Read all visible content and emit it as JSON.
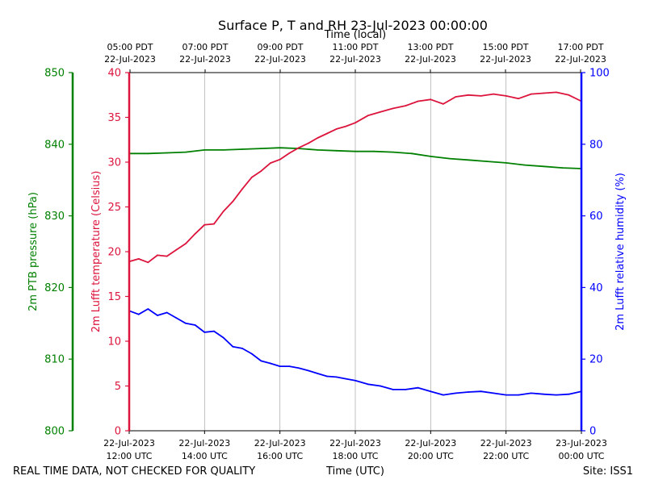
{
  "chart_data": {
    "type": "line",
    "title": "Surface P, T and RH 23-Jul-2023 00:00:00",
    "top_axis_label": "Time (local)",
    "top_ticks": [
      {
        "line1": "05:00 PDT",
        "line2": "22-Jul-2023"
      },
      {
        "line1": "07:00 PDT",
        "line2": "22-Jul-2023"
      },
      {
        "line1": "09:00 PDT",
        "line2": "22-Jul-2023"
      },
      {
        "line1": "11:00 PDT",
        "line2": "22-Jul-2023"
      },
      {
        "line1": "13:00 PDT",
        "line2": "22-Jul-2023"
      },
      {
        "line1": "15:00 PDT",
        "line2": "22-Jul-2023"
      },
      {
        "line1": "17:00 PDT",
        "line2": "22-Jul-2023"
      }
    ],
    "bottom_axis_label": "Time (UTC)",
    "bottom_ticks": [
      {
        "line1": "22-Jul-2023",
        "line2": "12:00 UTC"
      },
      {
        "line1": "22-Jul-2023",
        "line2": "14:00 UTC"
      },
      {
        "line1": "22-Jul-2023",
        "line2": "16:00 UTC"
      },
      {
        "line1": "22-Jul-2023",
        "line2": "18:00 UTC"
      },
      {
        "line1": "22-Jul-2023",
        "line2": "20:00 UTC"
      },
      {
        "line1": "22-Jul-2023",
        "line2": "22:00 UTC"
      },
      {
        "line1": "23-Jul-2023",
        "line2": "00:00 UTC"
      }
    ],
    "xlim": [
      "22-Jul-2023 12:00 UTC",
      "23-Jul-2023 00:00 UTC"
    ],
    "grid": "vertical",
    "axes": {
      "pressure": {
        "label": "2m PTB pressure (hPa)",
        "lim": [
          800,
          850
        ],
        "ticks": [
          "800",
          "810",
          "820",
          "830",
          "840",
          "850"
        ],
        "color": "#008000"
      },
      "temperature": {
        "label": "2m Lufft temperature (Celsius)",
        "lim": [
          0,
          40
        ],
        "ticks": [
          "0",
          "5",
          "10",
          "15",
          "20",
          "25",
          "30",
          "35",
          "40"
        ],
        "color": "#dc143c"
      },
      "humidity": {
        "label": "2m Lufft relative humidity (%)",
        "lim": [
          0,
          100
        ],
        "ticks": [
          "0",
          "20",
          "40",
          "60",
          "80",
          "100"
        ],
        "color": "#0000ff"
      }
    },
    "series": [
      {
        "key": "pressure",
        "color": "#008000",
        "x": [
          "12:00",
          "12:30",
          "13:00",
          "13:30",
          "14:00",
          "14:30",
          "15:00",
          "15:30",
          "16:00",
          "16:30",
          "17:00",
          "17:30",
          "18:00",
          "18:30",
          "19:00",
          "19:30",
          "20:00",
          "20:30",
          "21:00",
          "21:30",
          "22:00",
          "22:30",
          "23:00",
          "23:30",
          "00:00"
        ],
        "values": [
          838.7,
          838.7,
          838.8,
          838.9,
          839.2,
          839.2,
          839.3,
          839.4,
          839.5,
          839.4,
          839.2,
          839.1,
          839.0,
          839.0,
          838.9,
          838.7,
          838.3,
          838.0,
          837.8,
          837.6,
          837.4,
          837.1,
          836.9,
          836.7,
          836.6
        ]
      },
      {
        "key": "temperature",
        "color": "#dc143c",
        "x": [
          "12:00",
          "12:15",
          "12:30",
          "12:45",
          "13:00",
          "13:15",
          "13:30",
          "13:45",
          "14:00",
          "14:15",
          "14:30",
          "14:45",
          "15:00",
          "15:15",
          "15:30",
          "15:45",
          "16:00",
          "16:15",
          "16:30",
          "16:45",
          "17:00",
          "17:15",
          "17:30",
          "17:45",
          "18:00",
          "18:20",
          "18:40",
          "19:00",
          "19:20",
          "19:40",
          "20:00",
          "20:20",
          "20:40",
          "21:00",
          "21:20",
          "21:40",
          "22:00",
          "22:20",
          "22:40",
          "23:00",
          "23:20",
          "23:40",
          "00:00"
        ],
        "values": [
          18.9,
          19.2,
          18.8,
          19.6,
          19.5,
          20.2,
          20.9,
          22.0,
          23.0,
          23.1,
          24.5,
          25.6,
          27.0,
          28.3,
          29.0,
          29.9,
          30.3,
          31.0,
          31.6,
          32.1,
          32.7,
          33.2,
          33.7,
          34.0,
          34.4,
          35.2,
          35.6,
          36.0,
          36.3,
          36.8,
          37.0,
          36.5,
          37.3,
          37.5,
          37.4,
          37.6,
          37.4,
          37.1,
          37.6,
          37.7,
          37.8,
          37.5,
          36.8
        ]
      },
      {
        "key": "humidity",
        "color": "#0000ff",
        "x": [
          "12:00",
          "12:15",
          "12:30",
          "12:45",
          "13:00",
          "13:15",
          "13:30",
          "13:45",
          "14:00",
          "14:15",
          "14:30",
          "14:45",
          "15:00",
          "15:15",
          "15:30",
          "15:45",
          "16:00",
          "16:15",
          "16:30",
          "16:45",
          "17:00",
          "17:15",
          "17:30",
          "17:45",
          "18:00",
          "18:20",
          "18:40",
          "19:00",
          "19:20",
          "19:40",
          "20:00",
          "20:20",
          "20:40",
          "21:00",
          "21:20",
          "21:40",
          "22:00",
          "22:20",
          "22:40",
          "23:00",
          "23:20",
          "23:40",
          "00:00"
        ],
        "values": [
          33.5,
          32.5,
          34.0,
          32.2,
          33.0,
          31.5,
          30.0,
          29.5,
          27.5,
          27.8,
          26.0,
          23.5,
          23.0,
          21.5,
          19.5,
          18.8,
          18.0,
          18.0,
          17.5,
          16.8,
          16.0,
          15.2,
          15.0,
          14.5,
          14.0,
          13.0,
          12.5,
          11.5,
          11.5,
          12.0,
          11.0,
          10.0,
          10.5,
          10.8,
          11.0,
          10.5,
          10.0,
          10.0,
          10.5,
          10.2,
          10.0,
          10.2,
          11.0
        ]
      }
    ]
  },
  "footer": {
    "left": "REAL TIME DATA, NOT CHECKED FOR QUALITY",
    "right": "Site: ISS1"
  }
}
